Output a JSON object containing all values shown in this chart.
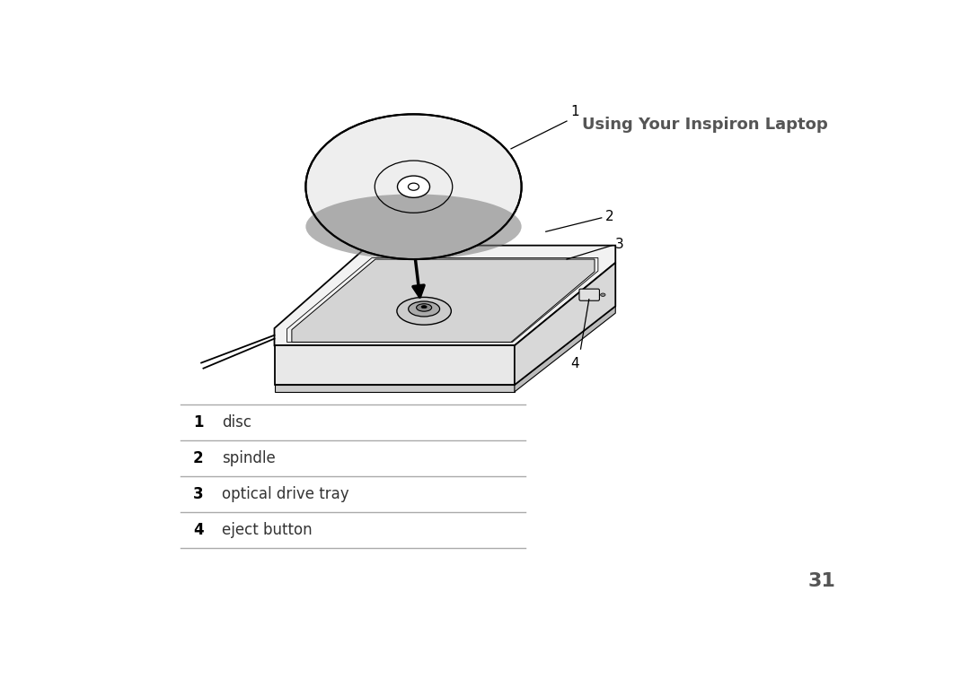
{
  "title": "Using Your Inspiron Laptop",
  "title_color": "#555555",
  "title_fontsize": 13,
  "title_bold": true,
  "page_number": "31",
  "page_number_fontsize": 16,
  "background_color": "#ffffff",
  "legend_items": [
    {
      "number": "1",
      "label": "disc"
    },
    {
      "number": "2",
      "label": "spindle"
    },
    {
      "number": "3",
      "label": "optical drive tray"
    },
    {
      "number": "4",
      "label": "eject button"
    }
  ],
  "legend_line_color": "#aaaaaa",
  "label_number_color": "#000000",
  "label_text_color": "#333333",
  "label_fontsize": 12
}
